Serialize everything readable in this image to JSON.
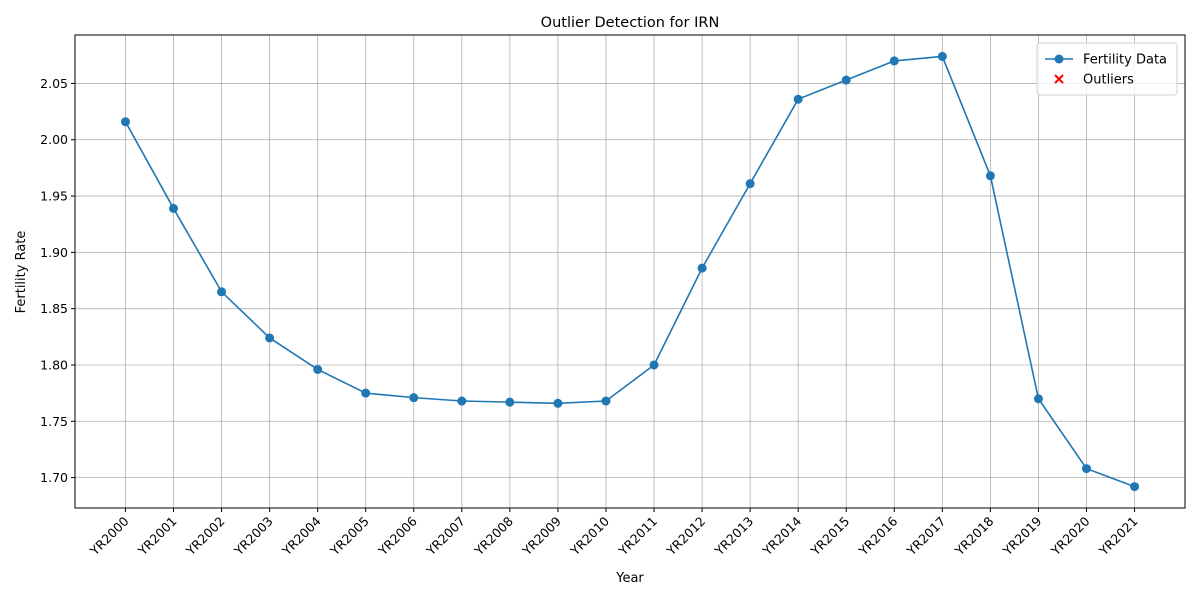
{
  "chart_data": {
    "type": "line",
    "title": "Outlier Detection for IRN",
    "xlabel": "Year",
    "ylabel": "Fertility Rate",
    "categories": [
      "YR2000",
      "YR2001",
      "YR2002",
      "YR2003",
      "YR2004",
      "YR2005",
      "YR2006",
      "YR2007",
      "YR2008",
      "YR2009",
      "YR2010",
      "YR2011",
      "YR2012",
      "YR2013",
      "YR2014",
      "YR2015",
      "YR2016",
      "YR2017",
      "YR2018",
      "YR2019",
      "YR2020",
      "YR2021"
    ],
    "series": [
      {
        "name": "Fertility Data",
        "color": "#1f77b4",
        "marker": "o",
        "line": true,
        "values": [
          2.016,
          1.939,
          1.865,
          1.824,
          1.796,
          1.775,
          1.771,
          1.768,
          1.767,
          1.766,
          1.768,
          1.8,
          1.886,
          1.961,
          2.036,
          2.053,
          2.07,
          2.074,
          1.968,
          1.77,
          1.708,
          1.692
        ]
      },
      {
        "name": "Outliers",
        "color": "#ff0000",
        "marker": "x",
        "line": false,
        "values": [
          null,
          null,
          null,
          null,
          null,
          null,
          null,
          null,
          null,
          null,
          null,
          null,
          null,
          null,
          null,
          null,
          null,
          null,
          null,
          null,
          null,
          null
        ]
      }
    ],
    "ylim": [
      1.673,
      2.093
    ],
    "yticks": [
      {
        "value": 1.7,
        "label": "1.70"
      },
      1.75,
      {
        "value": 1.8,
        "label": "1.80"
      },
      1.85,
      {
        "value": 1.9,
        "label": "1.90"
      },
      1.95,
      {
        "value": 2.0,
        "label": "2.00"
      },
      2.05
    ],
    "grid": true,
    "legend": "upper right"
  }
}
